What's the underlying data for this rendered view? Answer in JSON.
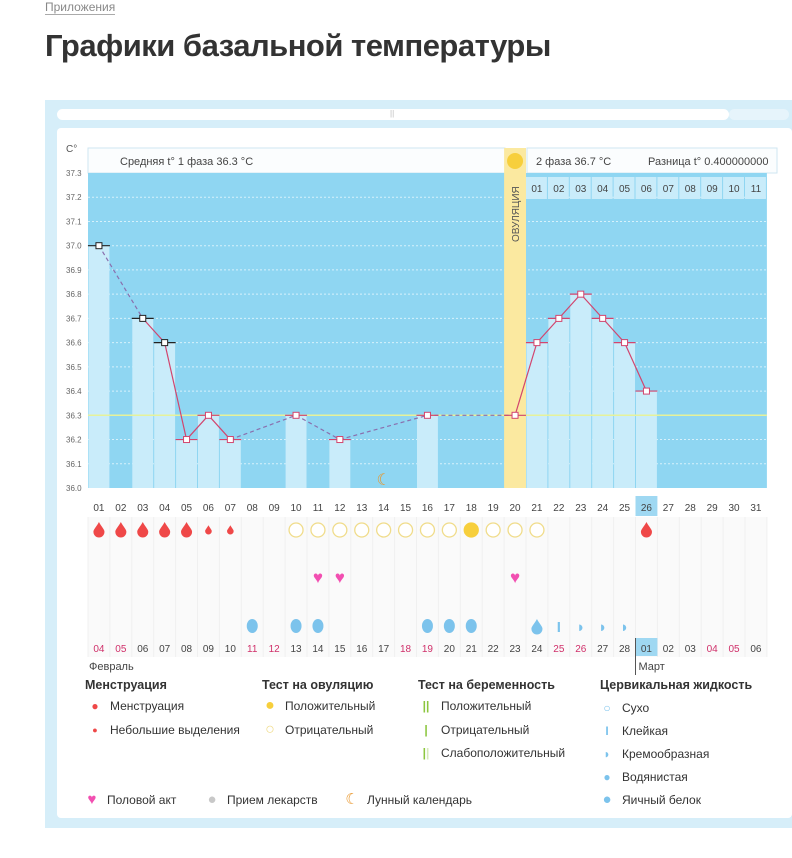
{
  "breadcrumb": "Приложения",
  "title": "Графики базальной температуры",
  "chart_data": {
    "type": "line",
    "ylabel": "С°",
    "ylim": [
      36.0,
      37.3
    ],
    "yticks": [
      "37.3",
      "37.2",
      "37.1",
      "37.0",
      "36.9",
      "36.8",
      "36.7",
      "36.6",
      "36.5",
      "36.4",
      "36.3",
      "36.2",
      "36.1",
      "36.0"
    ],
    "days": [
      "01",
      "02",
      "03",
      "04",
      "05",
      "06",
      "07",
      "08",
      "09",
      "10",
      "11",
      "12",
      "13",
      "14",
      "15",
      "16",
      "17",
      "18",
      "19",
      "20",
      "21",
      "22",
      "23",
      "24",
      "25",
      "26",
      "27",
      "28",
      "29",
      "30",
      "31"
    ],
    "temperatures": {
      "01": 37.0,
      "03": 36.7,
      "04": 36.6,
      "05": 36.2,
      "06": 36.3,
      "07": 36.2,
      "10": 36.3,
      "12": 36.2,
      "16": 36.3,
      "20": 36.3,
      "21": 36.6,
      "22": 36.7,
      "23": 36.8,
      "24": 36.7,
      "25": 36.6,
      "26": 36.4
    },
    "average_line": 36.3,
    "ovulation_day": "20",
    "ovulation_label": "ОВУЛЯЦИЯ",
    "today": "26",
    "phase1_text": "Средняя t° 1 фаза 36.3 °С",
    "phase2_text": "2 фаза 36.7 °С",
    "diff_text": "Разница t° 0.400000000",
    "phase2_cycle_days": [
      "01",
      "02",
      "03",
      "04",
      "05",
      "06",
      "07",
      "08",
      "09",
      "10",
      "11"
    ],
    "moon_day": "14",
    "menstruation": {
      "01": "full",
      "02": "full",
      "03": "full",
      "04": "full",
      "05": "full",
      "06": "light",
      "07": "light",
      "26": "full"
    },
    "ovulation_test": {
      "10": "neg",
      "11": "neg",
      "12": "neg",
      "13": "neg",
      "14": "neg",
      "15": "neg",
      "16": "neg",
      "17": "neg",
      "18": "pos",
      "19": "neg",
      "20": "neg",
      "21": "neg"
    },
    "intercourse": [
      "11",
      "12",
      "20"
    ],
    "cervical_fluid": {
      "08": "egg",
      "10": "egg",
      "11": "egg",
      "16": "egg",
      "17": "egg",
      "18": "egg",
      "21": "watery",
      "22": "sticky",
      "23": "creamy",
      "24": "creamy",
      "25": "creamy"
    },
    "dates": [
      "04",
      "05",
      "06",
      "07",
      "08",
      "09",
      "10",
      "11",
      "12",
      "13",
      "14",
      "15",
      "16",
      "17",
      "18",
      "19",
      "20",
      "21",
      "22",
      "23",
      "24",
      "25",
      "26",
      "27",
      "28",
      "01",
      "02",
      "03",
      "04",
      "05",
      "06"
    ],
    "weekend_idx": [
      0,
      1,
      7,
      8,
      14,
      15,
      21,
      22,
      28,
      29
    ],
    "month1": "Февраль",
    "month2": "Март",
    "colors": {
      "plot_bg": "#8fd6f2",
      "bar": "#c9ecfa",
      "ovulation": "#fbe9a0",
      "line": "#d2456e",
      "menstruation": "#ef4848",
      "ovu_test": "#f7cf3c",
      "heart": "#f24fb1",
      "fluid": "#7cc3ec",
      "weekend": "#d0306a",
      "moon": "#e8962a"
    }
  },
  "legend": {
    "menstruation": {
      "title": "Менструация",
      "items": [
        "Менструация",
        "Небольшие выделения"
      ]
    },
    "ovulation_test": {
      "title": "Тест на овуляцию",
      "items": [
        "Положительный",
        "Отрицательный"
      ]
    },
    "pregnancy_test": {
      "title": "Тест на беременность",
      "items": [
        "Положительный",
        "Отрицательный",
        "Слабоположительный"
      ]
    },
    "cervical": {
      "title": "Цервикальная жидкость",
      "items": [
        "Сухо",
        "Клейкая",
        "Кремообразная",
        "Водянистая",
        "Яичный белок"
      ]
    },
    "other": [
      "Половой акт",
      "Прием лекарств",
      "Лунный календарь"
    ]
  }
}
